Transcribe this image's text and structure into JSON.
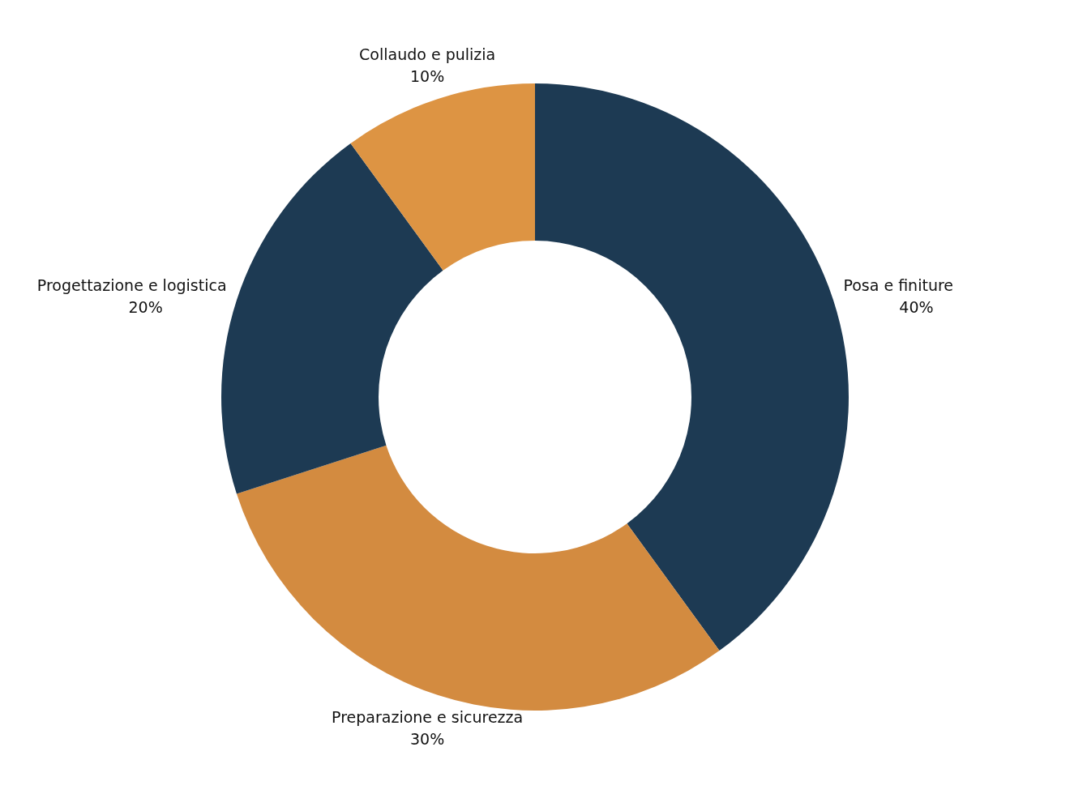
{
  "chart_data": {
    "type": "donut",
    "categories": [
      "Posa e finiture",
      "Preparazione e sicurezza",
      "Progettazione e logistica",
      "Collaudo e pulizia"
    ],
    "values": [
      40,
      30,
      20,
      10
    ],
    "value_labels": [
      "40%",
      "30%",
      "20%",
      "10%"
    ],
    "colors": [
      "#1d3a53",
      "#d38b40",
      "#1d3a53",
      "#dd9443"
    ]
  }
}
